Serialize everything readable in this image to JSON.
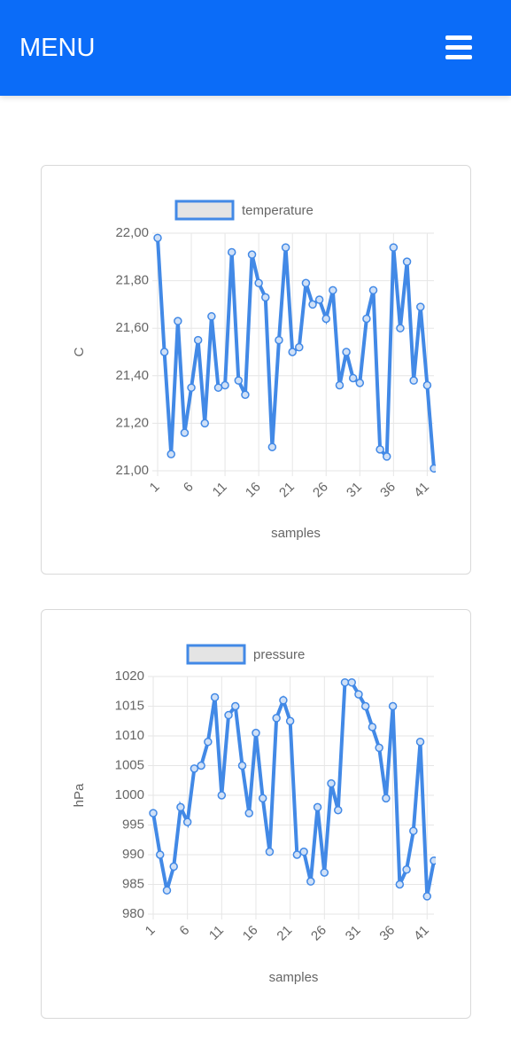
{
  "header": {
    "title": "MENU"
  },
  "chart_data": [
    {
      "type": "line",
      "xlabel": "samples",
      "ylabel": "C",
      "x": [
        1,
        2,
        3,
        4,
        5,
        6,
        7,
        8,
        9,
        10,
        11,
        12,
        13,
        14,
        15,
        16,
        17,
        18,
        19,
        20,
        21,
        22,
        23,
        24,
        25,
        26,
        27,
        28,
        29,
        30,
        31,
        32,
        33,
        34,
        35,
        36,
        37,
        38,
        39,
        40,
        41,
        42
      ],
      "series": [
        {
          "name": "temperature",
          "color": "#4289e6",
          "values": [
            21.98,
            21.5,
            21.07,
            21.63,
            21.16,
            21.35,
            21.55,
            21.2,
            21.65,
            21.35,
            21.36,
            21.92,
            21.38,
            21.32,
            21.91,
            21.79,
            21.73,
            21.1,
            21.55,
            21.94,
            21.5,
            21.52,
            21.79,
            21.7,
            21.72,
            21.64,
            21.76,
            21.36,
            21.5,
            21.39,
            21.37,
            21.64,
            21.76,
            21.09,
            21.06,
            21.94,
            21.6,
            21.88,
            21.38,
            21.69,
            21.36,
            21.01
          ]
        }
      ],
      "xlim": [
        1,
        42
      ],
      "xticks": [
        1,
        6,
        11,
        16,
        21,
        26,
        31,
        36,
        41
      ],
      "ylim": [
        21,
        22
      ],
      "yticks": [
        {
          "value": 21,
          "label": "21,00"
        },
        {
          "value": 21.2,
          "label": "21,20"
        },
        {
          "value": 21.4,
          "label": "21,40"
        },
        {
          "value": 21.6,
          "label": "21,60"
        },
        {
          "value": 21.8,
          "label": "21,80"
        },
        {
          "value": 22,
          "label": "22,00"
        }
      ],
      "grid": true,
      "legend": "top"
    },
    {
      "type": "line",
      "xlabel": "samples",
      "ylabel": "hPa",
      "x": [
        1,
        2,
        3,
        4,
        5,
        6,
        7,
        8,
        9,
        10,
        11,
        12,
        13,
        14,
        15,
        16,
        17,
        18,
        19,
        20,
        21,
        22,
        23,
        24,
        25,
        26,
        27,
        28,
        29,
        30,
        31,
        32,
        33,
        34,
        35,
        36,
        37,
        38,
        39,
        40,
        41,
        42
      ],
      "series": [
        {
          "name": "pressure",
          "color": "#4289e6",
          "values": [
            997,
            990,
            984,
            988,
            998,
            995.5,
            1004.5,
            1005,
            1009,
            1016.5,
            1000,
            1013.5,
            1015,
            1005,
            997,
            1010.5,
            999.5,
            990.5,
            1013,
            1016,
            1012.5,
            990,
            990.5,
            985.5,
            998,
            987,
            1002,
            997.5,
            1019,
            1019,
            1017,
            1015,
            1011.5,
            1008,
            999.5,
            1015,
            985,
            987.5,
            994,
            1009,
            983,
            989
          ]
        }
      ],
      "xlim": [
        1,
        42
      ],
      "xticks": [
        1,
        6,
        11,
        16,
        21,
        26,
        31,
        36,
        41
      ],
      "ylim": [
        980,
        1020
      ],
      "yticks": [
        980,
        985,
        990,
        995,
        1000,
        1005,
        1010,
        1015,
        1020
      ],
      "grid": true,
      "legend": "top"
    }
  ]
}
